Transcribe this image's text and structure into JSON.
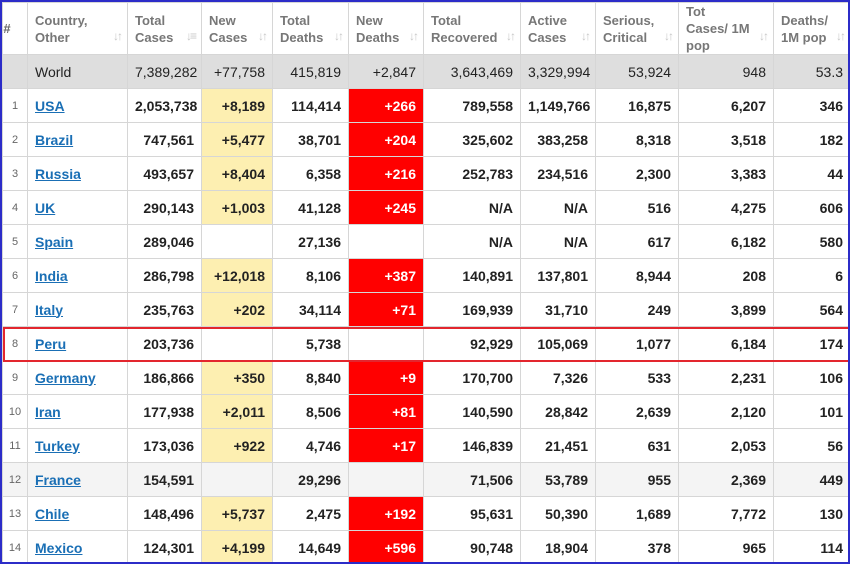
{
  "columns": [
    {
      "label": "#"
    },
    {
      "label": "Country, Other"
    },
    {
      "label": "Total Cases"
    },
    {
      "label": "New Cases"
    },
    {
      "label": "Total Deaths"
    },
    {
      "label": "New Deaths"
    },
    {
      "label": "Total Recovered"
    },
    {
      "label": "Active Cases"
    },
    {
      "label": "Serious, Critical"
    },
    {
      "label": "Tot Cases/ 1M pop"
    },
    {
      "label": "Deaths/ 1M pop"
    }
  ],
  "sort_icons": {
    "default": "↓↑",
    "active": "↓≡"
  },
  "world": [
    "",
    "World",
    "7,389,282",
    "+77,758",
    "415,819",
    "+2,847",
    "3,643,469",
    "3,329,994",
    "53,924",
    "948",
    "53.3"
  ],
  "rows": [
    [
      "1",
      "USA",
      "2,053,738",
      "+8,189",
      "114,414",
      "+266",
      "789,558",
      "1,149,766",
      "16,875",
      "6,207",
      "346"
    ],
    [
      "2",
      "Brazil",
      "747,561",
      "+5,477",
      "38,701",
      "+204",
      "325,602",
      "383,258",
      "8,318",
      "3,518",
      "182"
    ],
    [
      "3",
      "Russia",
      "493,657",
      "+8,404",
      "6,358",
      "+216",
      "252,783",
      "234,516",
      "2,300",
      "3,383",
      "44"
    ],
    [
      "4",
      "UK",
      "290,143",
      "+1,003",
      "41,128",
      "+245",
      "N/A",
      "N/A",
      "516",
      "4,275",
      "606"
    ],
    [
      "5",
      "Spain",
      "289,046",
      "",
      "27,136",
      "",
      "N/A",
      "N/A",
      "617",
      "6,182",
      "580"
    ],
    [
      "6",
      "India",
      "286,798",
      "+12,018",
      "8,106",
      "+387",
      "140,891",
      "137,801",
      "8,944",
      "208",
      "6"
    ],
    [
      "7",
      "Italy",
      "235,763",
      "+202",
      "34,114",
      "+71",
      "169,939",
      "31,710",
      "249",
      "3,899",
      "564"
    ],
    [
      "8",
      "Peru",
      "203,736",
      "",
      "5,738",
      "",
      "92,929",
      "105,069",
      "1,077",
      "6,184",
      "174"
    ],
    [
      "9",
      "Germany",
      "186,866",
      "+350",
      "8,840",
      "+9",
      "170,700",
      "7,326",
      "533",
      "2,231",
      "106"
    ],
    [
      "10",
      "Iran",
      "177,938",
      "+2,011",
      "8,506",
      "+81",
      "140,590",
      "28,842",
      "2,639",
      "2,120",
      "101"
    ],
    [
      "11",
      "Turkey",
      "173,036",
      "+922",
      "4,746",
      "+17",
      "146,839",
      "21,451",
      "631",
      "2,053",
      "56"
    ],
    [
      "12",
      "France",
      "154,591",
      "",
      "29,296",
      "",
      "71,506",
      "53,789",
      "955",
      "2,369",
      "449"
    ],
    [
      "13",
      "Chile",
      "148,496",
      "+5,737",
      "2,475",
      "+192",
      "95,631",
      "50,390",
      "1,689",
      "7,772",
      "130"
    ],
    [
      "14",
      "Mexico",
      "124,301",
      "+4,199",
      "14,649",
      "+596",
      "90,748",
      "18,904",
      "378",
      "965",
      "114"
    ]
  ],
  "highlighted_row": "Peru",
  "colors": {
    "new_cases_bg": "#fdefb1",
    "new_deaths_bg": "#ff0000",
    "link": "#1a6fb5",
    "highlight_border": "#e3262e",
    "frame_border": "#2c2cc8"
  }
}
